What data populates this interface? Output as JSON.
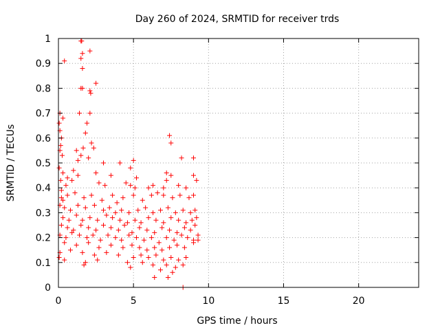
{
  "chart_data": {
    "type": "scatter",
    "title": "Day 260 of 2024, SRMTID for receiver trds",
    "xlabel": "GPS time / hours",
    "ylabel": "SRMTID / TECUs",
    "xlim": [
      0,
      24
    ],
    "ylim": [
      0,
      1
    ],
    "xticks": [
      0,
      5,
      10,
      15,
      20
    ],
    "yticks": [
      0,
      0.1,
      0.2,
      0.3,
      0.4,
      0.5,
      0.6,
      0.7,
      0.8,
      0.9,
      1
    ],
    "ytick_labels": [
      "0",
      "0.1",
      "0.2",
      "0.3",
      "0.4",
      "0.5",
      "0.6",
      "0.7",
      "0.8",
      "0.9",
      "1"
    ],
    "grid": true,
    "marker": "plus",
    "series": [
      {
        "name": "SRMTID",
        "color": "#ff0000",
        "points": [
          [
            1.5,
            0.99
          ],
          [
            1.55,
            0.99
          ],
          [
            2.1,
            0.95
          ],
          [
            0.4,
            0.91
          ],
          [
            1.6,
            0.94
          ],
          [
            1.5,
            0.92
          ],
          [
            1.6,
            0.88
          ],
          [
            2.5,
            0.82
          ],
          [
            1.5,
            0.8
          ],
          [
            1.6,
            0.8
          ],
          [
            2.1,
            0.79
          ],
          [
            2.15,
            0.78
          ],
          [
            2.1,
            0.7
          ],
          [
            1.4,
            0.7
          ],
          [
            0.1,
            0.7
          ],
          [
            0.05,
            0.66
          ],
          [
            0.3,
            0.68
          ],
          [
            0.1,
            0.63
          ],
          [
            1.9,
            0.66
          ],
          [
            0.2,
            0.6
          ],
          [
            0.15,
            0.57
          ],
          [
            1.8,
            0.62
          ],
          [
            2.2,
            0.58
          ],
          [
            2.35,
            0.56
          ],
          [
            7.4,
            0.61
          ],
          [
            7.5,
            0.58
          ],
          [
            0.1,
            0.55
          ],
          [
            0.25,
            0.53
          ],
          [
            1.2,
            0.55
          ],
          [
            1.5,
            0.53
          ],
          [
            1.65,
            0.56
          ],
          [
            2.0,
            0.52
          ],
          [
            1.3,
            0.51
          ],
          [
            3.0,
            0.5
          ],
          [
            4.1,
            0.5
          ],
          [
            5.0,
            0.51
          ],
          [
            4.8,
            0.48
          ],
          [
            0.05,
            0.48
          ],
          [
            0.3,
            0.46
          ],
          [
            1.0,
            0.47
          ],
          [
            2.5,
            0.46
          ],
          [
            3.5,
            0.45
          ],
          [
            5.2,
            0.44
          ],
          [
            7.2,
            0.46
          ],
          [
            7.5,
            0.45
          ],
          [
            8.2,
            0.52
          ],
          [
            9.0,
            0.52
          ],
          [
            0.15,
            0.43
          ],
          [
            0.6,
            0.44
          ],
          [
            0.9,
            0.43
          ],
          [
            1.3,
            0.45
          ],
          [
            0.5,
            0.41
          ],
          [
            0.2,
            0.39
          ],
          [
            2.7,
            0.42
          ],
          [
            3.1,
            0.41
          ],
          [
            4.5,
            0.42
          ],
          [
            4.8,
            0.41
          ],
          [
            5.1,
            0.4
          ],
          [
            6.0,
            0.4
          ],
          [
            6.3,
            0.41
          ],
          [
            7.0,
            0.4
          ],
          [
            7.2,
            0.43
          ],
          [
            8.0,
            0.41
          ],
          [
            8.5,
            0.4
          ],
          [
            9.0,
            0.45
          ],
          [
            9.2,
            0.43
          ],
          [
            0.2,
            0.36
          ],
          [
            0.3,
            0.35
          ],
          [
            0.6,
            0.37
          ],
          [
            1.1,
            0.38
          ],
          [
            1.7,
            0.36
          ],
          [
            2.2,
            0.37
          ],
          [
            2.9,
            0.35
          ],
          [
            3.6,
            0.37
          ],
          [
            3.9,
            0.34
          ],
          [
            4.3,
            0.36
          ],
          [
            5.0,
            0.37
          ],
          [
            5.6,
            0.35
          ],
          [
            6.2,
            0.37
          ],
          [
            6.6,
            0.38
          ],
          [
            7.0,
            0.37
          ],
          [
            7.6,
            0.36
          ],
          [
            8.1,
            0.37
          ],
          [
            8.7,
            0.36
          ],
          [
            9.0,
            0.37
          ],
          [
            0.1,
            0.33
          ],
          [
            0.4,
            0.32
          ],
          [
            0.8,
            0.31
          ],
          [
            1.3,
            0.33
          ],
          [
            1.8,
            0.32
          ],
          [
            2.4,
            0.33
          ],
          [
            3.0,
            0.31
          ],
          [
            3.4,
            0.32
          ],
          [
            3.8,
            0.3
          ],
          [
            4.2,
            0.31
          ],
          [
            4.7,
            0.3
          ],
          [
            5.3,
            0.31
          ],
          [
            5.8,
            0.32
          ],
          [
            6.3,
            0.3
          ],
          [
            6.8,
            0.31
          ],
          [
            7.3,
            0.32
          ],
          [
            7.8,
            0.3
          ],
          [
            8.3,
            0.31
          ],
          [
            8.8,
            0.3
          ],
          [
            9.1,
            0.31
          ],
          [
            0.3,
            0.28
          ],
          [
            0.7,
            0.27
          ],
          [
            1.2,
            0.29
          ],
          [
            1.6,
            0.27
          ],
          [
            2.1,
            0.28
          ],
          [
            2.6,
            0.27
          ],
          [
            3.2,
            0.29
          ],
          [
            3.6,
            0.28
          ],
          [
            4.1,
            0.27
          ],
          [
            4.6,
            0.26
          ],
          [
            5.1,
            0.27
          ],
          [
            5.5,
            0.26
          ],
          [
            6.0,
            0.28
          ],
          [
            6.5,
            0.27
          ],
          [
            7.0,
            0.26
          ],
          [
            7.5,
            0.28
          ],
          [
            8.0,
            0.27
          ],
          [
            8.5,
            0.26
          ],
          [
            8.9,
            0.27
          ],
          [
            9.2,
            0.28
          ],
          [
            0.2,
            0.25
          ],
          [
            0.6,
            0.24
          ],
          [
            1.0,
            0.23
          ],
          [
            1.5,
            0.25
          ],
          [
            2.0,
            0.24
          ],
          [
            2.5,
            0.23
          ],
          [
            3.0,
            0.25
          ],
          [
            3.5,
            0.24
          ],
          [
            4.0,
            0.23
          ],
          [
            4.4,
            0.25
          ],
          [
            4.9,
            0.22
          ],
          [
            5.4,
            0.24
          ],
          [
            5.9,
            0.23
          ],
          [
            6.4,
            0.22
          ],
          [
            6.9,
            0.24
          ],
          [
            7.4,
            0.23
          ],
          [
            7.9,
            0.22
          ],
          [
            8.4,
            0.24
          ],
          [
            8.8,
            0.23
          ],
          [
            9.1,
            0.25
          ],
          [
            0.1,
            0.21
          ],
          [
            0.5,
            0.2
          ],
          [
            0.9,
            0.22
          ],
          [
            1.4,
            0.21
          ],
          [
            1.9,
            0.2
          ],
          [
            2.3,
            0.21
          ],
          [
            2.8,
            0.19
          ],
          [
            3.3,
            0.21
          ],
          [
            3.8,
            0.2
          ],
          [
            4.2,
            0.19
          ],
          [
            4.7,
            0.21
          ],
          [
            5.2,
            0.2
          ],
          [
            5.7,
            0.19
          ],
          [
            6.2,
            0.2
          ],
          [
            6.7,
            0.18
          ],
          [
            7.2,
            0.2
          ],
          [
            7.7,
            0.19
          ],
          [
            8.2,
            0.21
          ],
          [
            8.6,
            0.2
          ],
          [
            9.0,
            0.19
          ],
          [
            9.3,
            0.21
          ],
          [
            0.4,
            0.18
          ],
          [
            1.2,
            0.17
          ],
          [
            2.0,
            0.18
          ],
          [
            2.7,
            0.16
          ],
          [
            3.5,
            0.17
          ],
          [
            4.3,
            0.16
          ],
          [
            4.9,
            0.17
          ],
          [
            5.4,
            0.16
          ],
          [
            5.9,
            0.15
          ],
          [
            6.4,
            0.16
          ],
          [
            6.9,
            0.15
          ],
          [
            7.4,
            0.16
          ],
          [
            7.9,
            0.17
          ],
          [
            8.4,
            0.16
          ],
          [
            9.0,
            0.18
          ],
          [
            9.3,
            0.19
          ],
          [
            0.1,
            0.14
          ],
          [
            0.8,
            0.15
          ],
          [
            1.6,
            0.14
          ],
          [
            2.4,
            0.13
          ],
          [
            3.2,
            0.14
          ],
          [
            4.0,
            0.13
          ],
          [
            5.0,
            0.12
          ],
          [
            5.5,
            0.13
          ],
          [
            6.0,
            0.12
          ],
          [
            6.5,
            0.13
          ],
          [
            7.0,
            0.11
          ],
          [
            7.5,
            0.12
          ],
          [
            8.0,
            0.11
          ],
          [
            8.5,
            0.12
          ],
          [
            0.05,
            0.12
          ],
          [
            0.4,
            0.11
          ],
          [
            1.8,
            0.1
          ],
          [
            2.6,
            0.11
          ],
          [
            4.6,
            0.1
          ],
          [
            5.6,
            0.1
          ],
          [
            6.3,
            0.09
          ],
          [
            7.2,
            0.09
          ],
          [
            7.8,
            0.08
          ],
          [
            8.3,
            0.09
          ],
          [
            1.7,
            0.09
          ],
          [
            4.8,
            0.08
          ],
          [
            6.8,
            0.07
          ],
          [
            7.6,
            0.06
          ],
          [
            6.4,
            0.04
          ],
          [
            7.3,
            0.04
          ],
          [
            8.3,
            0.0
          ]
        ]
      }
    ]
  }
}
